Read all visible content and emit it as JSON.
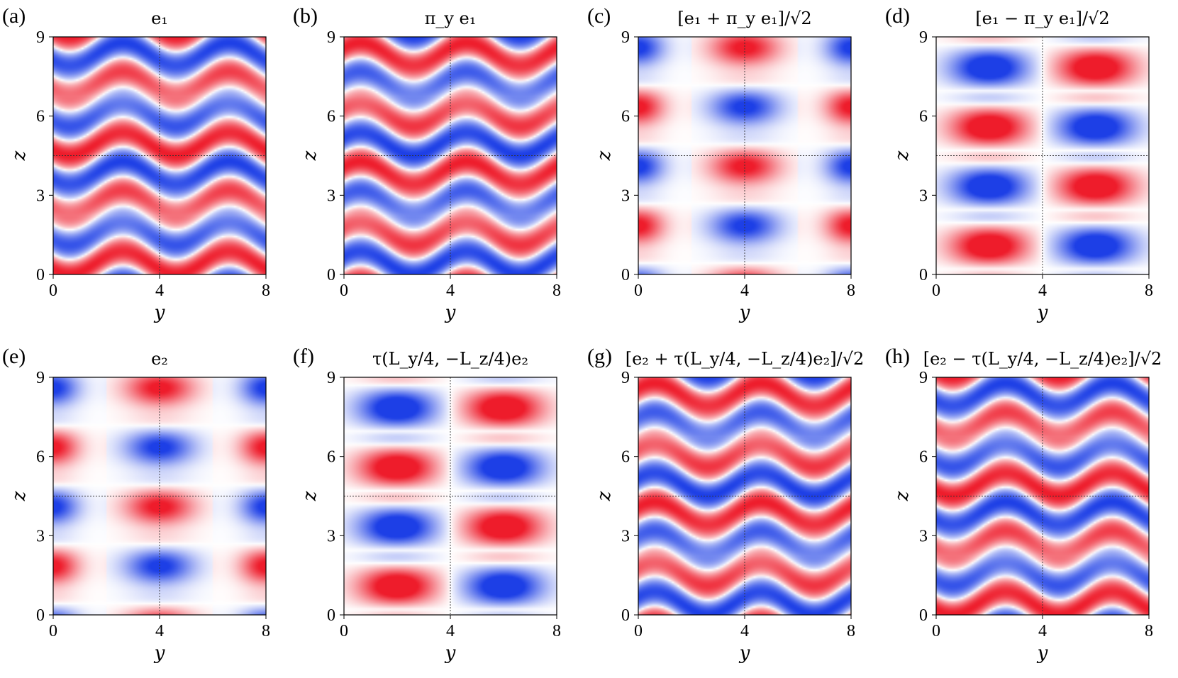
{
  "colors": {
    "positive": "#ee1c2b",
    "negative": "#1d3fe6",
    "zero": "#ffffff"
  },
  "chart_data": [
    {
      "type": "heatmap",
      "label": "(a)",
      "title": "e₁",
      "xlabel": "y",
      "ylabel": "z",
      "xlim": [
        0,
        8
      ],
      "ylim": [
        0,
        9
      ],
      "xticks": [
        "0",
        "4",
        "8"
      ],
      "yticks": [
        "0",
        "3",
        "6",
        "9"
      ],
      "reference_lines": {
        "x": 4,
        "y": 4.5
      },
      "pattern": "wavy"
    },
    {
      "type": "heatmap",
      "label": "(b)",
      "title": "π_y e₁",
      "xlabel": "y",
      "ylabel": "z",
      "xlim": [
        0,
        8
      ],
      "ylim": [
        0,
        9
      ],
      "xticks": [
        "0",
        "4",
        "8"
      ],
      "yticks": [
        "0",
        "3",
        "6",
        "9"
      ],
      "reference_lines": {
        "x": 4,
        "y": 4.5
      },
      "pattern": "wavy-mirrored"
    },
    {
      "type": "heatmap",
      "label": "(c)",
      "title": "[e₁ + π_y e₁]/√2",
      "xlabel": "y",
      "ylabel": "z",
      "xlim": [
        0,
        8
      ],
      "ylim": [
        0,
        9
      ],
      "xticks": [
        "0",
        "4",
        "8"
      ],
      "yticks": [
        "0",
        "3",
        "6",
        "9"
      ],
      "reference_lines": {
        "x": 4,
        "y": 4.5
      },
      "pattern": "symmetric-cells"
    },
    {
      "type": "heatmap",
      "label": "(d)",
      "title": "[e₁ − π_y e₁]/√2",
      "xlabel": "y",
      "ylabel": "z",
      "xlim": [
        0,
        8
      ],
      "ylim": [
        0,
        9
      ],
      "xticks": [
        "0",
        "4",
        "8"
      ],
      "yticks": [
        "0",
        "3",
        "6",
        "9"
      ],
      "reference_lines": {
        "x": 4,
        "y": 4.5
      },
      "pattern": "antisymmetric-cells"
    },
    {
      "type": "heatmap",
      "label": "(e)",
      "title": "e₂",
      "xlabel": "y",
      "ylabel": "z",
      "xlim": [
        0,
        8
      ],
      "ylim": [
        0,
        9
      ],
      "xticks": [
        "0",
        "4",
        "8"
      ],
      "yticks": [
        "0",
        "3",
        "6",
        "9"
      ],
      "reference_lines": {
        "x": 4,
        "y": 4.5
      },
      "pattern": "symmetric-cells"
    },
    {
      "type": "heatmap",
      "label": "(f)",
      "title": "τ(L_y/4, −L_z/4)e₂",
      "xlabel": "y",
      "ylabel": "z",
      "xlim": [
        0,
        8
      ],
      "ylim": [
        0,
        9
      ],
      "xticks": [
        "0",
        "4",
        "8"
      ],
      "yticks": [
        "0",
        "3",
        "6",
        "9"
      ],
      "reference_lines": {
        "x": 4,
        "y": 4.5
      },
      "pattern": "antisymmetric-cells"
    },
    {
      "type": "heatmap",
      "label": "(g)",
      "title": "[e₂ + τ(L_y/4, −L_z/4)e₂]/√2",
      "xlabel": "y",
      "ylabel": "z",
      "xlim": [
        0,
        8
      ],
      "ylim": [
        0,
        9
      ],
      "xticks": [
        "0",
        "4",
        "8"
      ],
      "yticks": [
        "0",
        "3",
        "6",
        "9"
      ],
      "reference_lines": {
        "x": 4,
        "y": 4.5
      },
      "pattern": "wavy-mirrored"
    },
    {
      "type": "heatmap",
      "label": "(h)",
      "title": "[e₂ − τ(L_y/4, −L_z/4)e₂]/√2",
      "xlabel": "y",
      "ylabel": "z",
      "xlim": [
        0,
        8
      ],
      "ylim": [
        0,
        9
      ],
      "xticks": [
        "0",
        "4",
        "8"
      ],
      "yticks": [
        "0",
        "3",
        "6",
        "9"
      ],
      "reference_lines": {
        "x": 4,
        "y": 4.5
      },
      "pattern": "wavy"
    }
  ]
}
